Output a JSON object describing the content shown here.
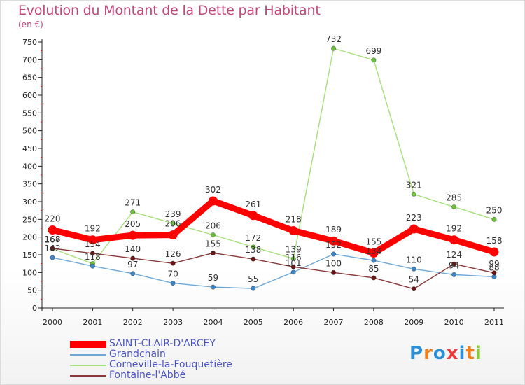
{
  "title": "Evolution du Montant de la Dette par Habitant",
  "subtitle": "(en €)",
  "logo": {
    "text": "Proxiti",
    "colors": [
      "#2f8fd6",
      "#f07f1a",
      "#2f8fd6",
      "#e83a3a",
      "#2f8fd6",
      "#f07f1a",
      "#8cc63e"
    ]
  },
  "chart_data": {
    "type": "line",
    "title": "Evolution du Montant de la Dette par Habitant",
    "subtitle": "(en €)",
    "xlabel": "",
    "ylabel": "",
    "x": [
      "2000",
      "2001",
      "2002",
      "2003",
      "2004",
      "2005",
      "2006",
      "2007",
      "2008",
      "2009",
      "2010",
      "2011"
    ],
    "ylim": [
      0,
      750
    ],
    "yticks": [
      0,
      50,
      100,
      150,
      200,
      250,
      300,
      350,
      400,
      450,
      500,
      550,
      600,
      650,
      700,
      750
    ],
    "grid": false,
    "legend_position": "bottom-left",
    "series": [
      {
        "name": "SAINT-CLAIR-D'ARCEY",
        "color": "#ff0000",
        "point_color": "#ff0000",
        "width": "thick",
        "values": [
          220,
          192,
          205,
          206,
          302,
          261,
          218,
          189,
          155,
          223,
          192,
          158
        ],
        "labels": [
          "220",
          "192",
          "205",
          "206",
          "302",
          "261",
          "218",
          "189",
          "155",
          "223",
          "192",
          "158"
        ]
      },
      {
        "name": "Grandchain",
        "color": "#6fa8d6",
        "point_color": "#3c86c8",
        "width": "thin",
        "values": [
          142,
          118,
          97,
          70,
          59,
          55,
          101,
          152,
          134,
          110,
          94,
          88
        ],
        "labels": [
          "142",
          "118",
          "97",
          "70",
          "59",
          "55",
          "101",
          "152",
          "134",
          "110",
          "94",
          "88"
        ]
      },
      {
        "name": "Corneville-la-Fouquetière",
        "color": "#a6e07a",
        "point_color": "#6cc13c",
        "width": "thin",
        "values": [
          167,
          125,
          271,
          239,
          206,
          172,
          139,
          732,
          699,
          321,
          285,
          250
        ],
        "labels": [
          "167",
          "",
          "271",
          "239",
          "206",
          "172",
          "139",
          "732",
          "699",
          "321",
          "285",
          "250"
        ]
      },
      {
        "name": "Fontaine-l'Abbé",
        "color": "#8a3a3a",
        "point_color": "#6a1414",
        "width": "thin",
        "values": [
          168,
          154,
          140,
          126,
          155,
          138,
          116,
          100,
          85,
          54,
          124,
          99
        ],
        "labels": [
          "168",
          "154",
          "140",
          "126",
          "155",
          "138",
          "116",
          "100",
          "85",
          "54",
          "124",
          "99"
        ]
      }
    ]
  }
}
